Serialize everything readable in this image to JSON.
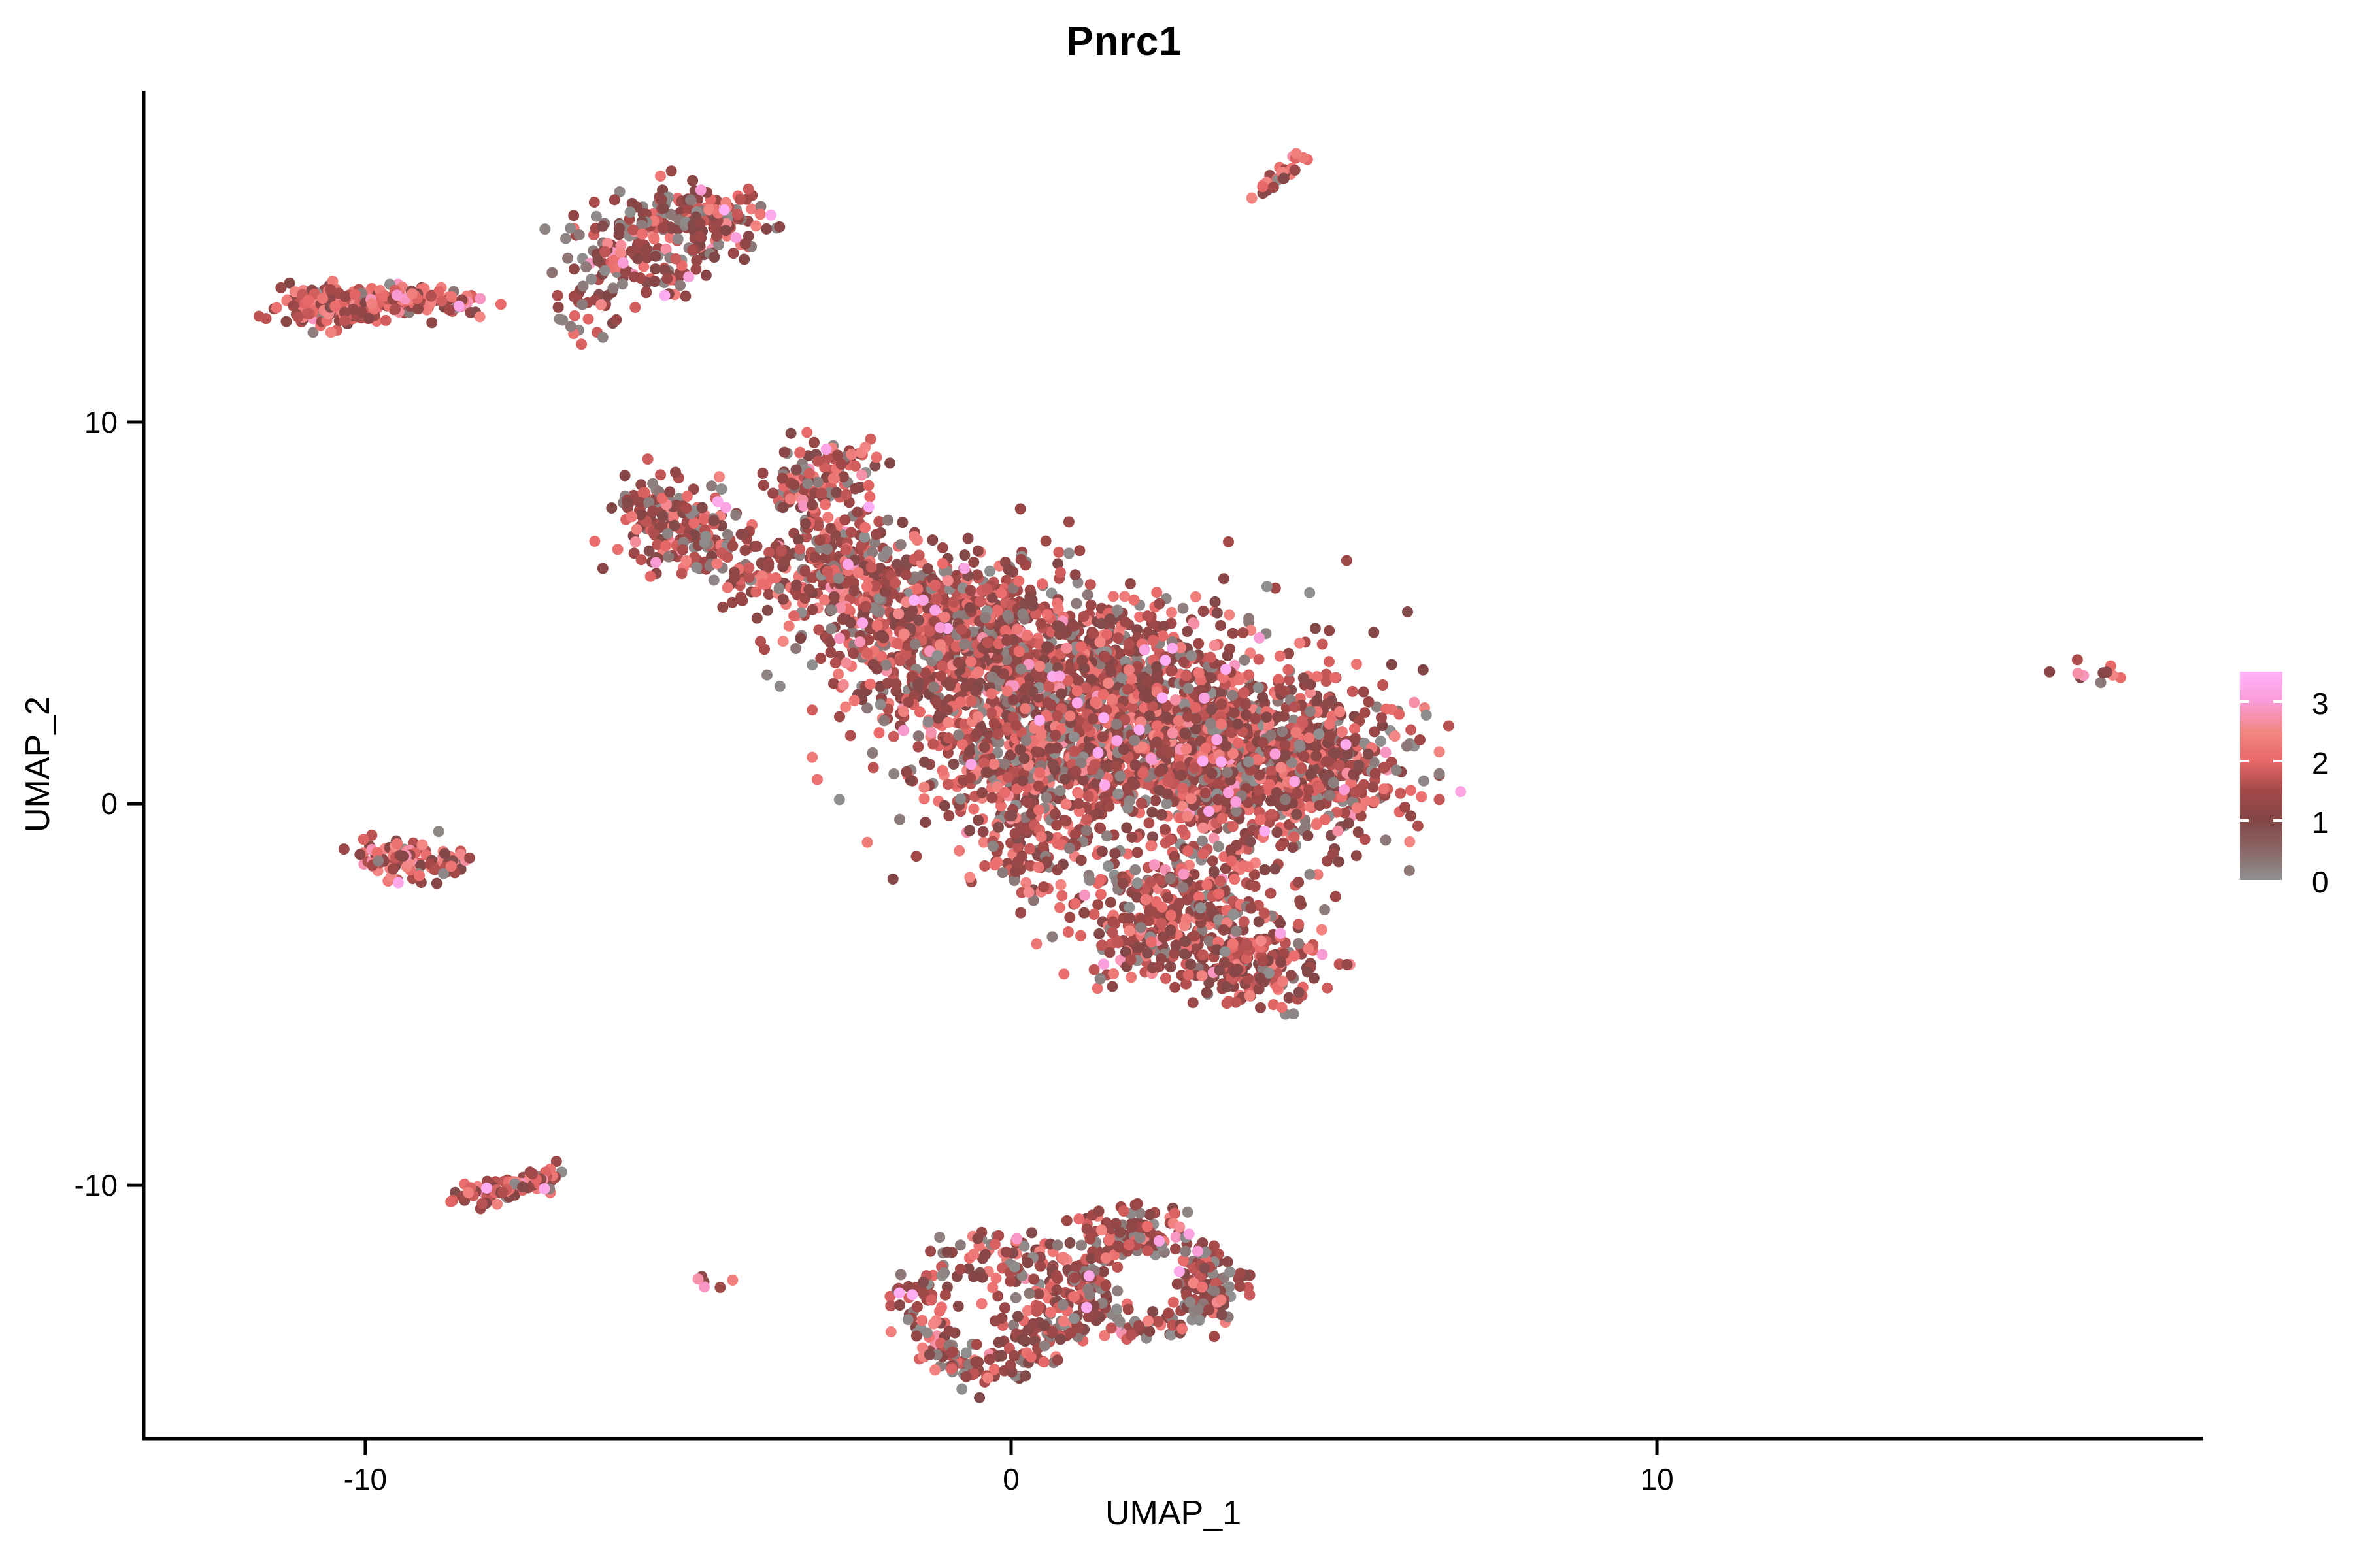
{
  "chart_data": {
    "type": "scatter",
    "title": "Pnrc1",
    "xlabel": "UMAP_1",
    "ylabel": "UMAP_2",
    "xlim": [
      -13.43,
      18.46
    ],
    "ylim": [
      -16.64,
      18.68
    ],
    "grid": false,
    "legend_position": "right",
    "point_radius_px": 8.5,
    "x_ticks": [
      {
        "value": -10,
        "label": "-10"
      },
      {
        "value": 0,
        "label": "0"
      },
      {
        "value": 10,
        "label": "10"
      }
    ],
    "y_ticks": [
      {
        "value": -10,
        "label": "-10"
      },
      {
        "value": 0,
        "label": "0"
      },
      {
        "value": 10,
        "label": "10"
      }
    ],
    "colorbar": {
      "min": 0,
      "max": 3.5,
      "tick_values": [
        3,
        2,
        1,
        0
      ],
      "tick_labels": [
        "3",
        "2",
        "1",
        "0"
      ],
      "gradient_stops": [
        {
          "value": 0.0,
          "color": "#909090"
        },
        {
          "value": 0.6,
          "color": "#8A6060"
        },
        {
          "value": 1.0,
          "color": "#824646"
        },
        {
          "value": 1.5,
          "color": "#A34848"
        },
        {
          "value": 2.0,
          "color": "#E86868"
        },
        {
          "value": 2.5,
          "color": "#F38784"
        },
        {
          "value": 3.0,
          "color": "#F99CD7"
        },
        {
          "value": 3.5,
          "color": "#FFB2FB"
        }
      ]
    },
    "expression_mixes": {
      "default": [
        [
          0.0,
          0.35,
          0.16
        ],
        [
          0.9,
          1.5,
          0.4
        ],
        [
          1.5,
          1.9,
          0.18
        ],
        [
          1.9,
          2.5,
          0.22
        ],
        [
          2.5,
          2.9,
          0.03
        ],
        [
          2.95,
          3.45,
          0.01
        ]
      ],
      "red": [
        [
          0.0,
          0.35,
          0.05
        ],
        [
          0.9,
          1.5,
          0.28
        ],
        [
          1.5,
          1.9,
          0.22
        ],
        [
          1.9,
          2.5,
          0.36
        ],
        [
          2.5,
          2.9,
          0.08
        ],
        [
          2.95,
          3.45,
          0.01
        ]
      ],
      "dark": [
        [
          0.0,
          0.35,
          0.2
        ],
        [
          0.9,
          1.5,
          0.45
        ],
        [
          1.5,
          1.9,
          0.15
        ],
        [
          1.9,
          2.5,
          0.16
        ],
        [
          2.5,
          2.9,
          0.03
        ],
        [
          2.95,
          3.45,
          0.01
        ]
      ]
    },
    "clusters": [
      {
        "id": "topleft-bar-a",
        "shape": "gauss",
        "cx": -10.4,
        "cy": 13.05,
        "sx": 0.55,
        "sy": 0.27,
        "rot": 0,
        "n": 190,
        "mix": "red"
      },
      {
        "id": "topleft-bar-b",
        "shape": "gauss",
        "cx": -9.2,
        "cy": 13.2,
        "sx": 0.5,
        "sy": 0.17,
        "rot": 0,
        "n": 80,
        "mix": "red"
      },
      {
        "id": "topleft-bar-c",
        "shape": "gauss",
        "cx": -8.35,
        "cy": 13.05,
        "sx": 0.18,
        "sy": 0.1,
        "rot": 0,
        "n": 6,
        "mix": "red"
      },
      {
        "id": "top-arc-a",
        "shape": "gauss",
        "cx": -4.95,
        "cy": 15.35,
        "sx": 0.6,
        "sy": 0.42,
        "rot": -20,
        "n": 160,
        "mix": "dark"
      },
      {
        "id": "top-arc-b",
        "shape": "gauss",
        "cx": -5.95,
        "cy": 14.4,
        "sx": 0.5,
        "sy": 0.55,
        "rot": 30,
        "n": 130,
        "mix": "dark"
      },
      {
        "id": "top-arc-tail",
        "shape": "gauss",
        "cx": -6.6,
        "cy": 12.9,
        "sx": 0.3,
        "sy": 0.35,
        "rot": 0,
        "n": 22,
        "mix": "dark"
      },
      {
        "id": "top-arc-sparse",
        "shape": "gauss",
        "cx": -5.6,
        "cy": 13.6,
        "sx": 0.45,
        "sy": 0.45,
        "rot": 0,
        "n": 20,
        "mix": "dark"
      },
      {
        "id": "top-streak",
        "shape": "line",
        "x1": 3.82,
        "y1": 16.0,
        "x2": 4.52,
        "y2": 16.95,
        "jitter": 0.07,
        "n": 30,
        "mix": "red"
      },
      {
        "id": "main-nw-blob",
        "shape": "gauss",
        "cx": -5.25,
        "cy": 7.6,
        "sx": 0.5,
        "sy": 0.6,
        "rot": 20,
        "n": 130,
        "mix": "default"
      },
      {
        "id": "main-nw-arm",
        "shape": "gauss",
        "cx": -4.4,
        "cy": 6.35,
        "sx": 0.85,
        "sy": 0.45,
        "rot": -25,
        "n": 130,
        "mix": "default"
      },
      {
        "id": "main-hook",
        "shape": "gauss",
        "cx": -3.0,
        "cy": 8.2,
        "sx": 0.38,
        "sy": 0.6,
        "rot": 15,
        "n": 110,
        "mix": "default"
      },
      {
        "id": "main-hook-top",
        "shape": "gauss",
        "cx": -2.55,
        "cy": 9.0,
        "sx": 0.3,
        "sy": 0.25,
        "rot": 0,
        "n": 30,
        "mix": "default"
      },
      {
        "id": "main-upper-left",
        "shape": "gauss",
        "cx": -2.55,
        "cy": 6.2,
        "sx": 0.6,
        "sy": 0.75,
        "rot": 0,
        "n": 170,
        "mix": "default"
      },
      {
        "id": "main-left",
        "shape": "gauss",
        "cx": -1.35,
        "cy": 4.9,
        "sx": 0.95,
        "sy": 0.95,
        "rot": 0,
        "n": 400,
        "mix": "default"
      },
      {
        "id": "main-center-left",
        "shape": "gauss",
        "cx": 0.3,
        "cy": 3.6,
        "sx": 1.3,
        "sy": 1.15,
        "rot": 0,
        "n": 780,
        "mix": "default"
      },
      {
        "id": "main-core",
        "shape": "gauss",
        "cx": 2.2,
        "cy": 1.9,
        "sx": 1.5,
        "sy": 1.25,
        "rot": -15,
        "n": 1150,
        "mix": "default"
      },
      {
        "id": "main-right",
        "shape": "gauss",
        "cx": 3.9,
        "cy": 0.7,
        "sx": 1.05,
        "sy": 1.0,
        "rot": 0,
        "n": 500,
        "mix": "default"
      },
      {
        "id": "main-right-bulge",
        "shape": "gauss",
        "cx": 4.9,
        "cy": 1.4,
        "sx": 0.55,
        "sy": 0.75,
        "rot": 0,
        "n": 140,
        "mix": "default"
      },
      {
        "id": "main-lower-left",
        "shape": "gauss",
        "cx": 0.1,
        "cy": 0.7,
        "sx": 0.8,
        "sy": 0.8,
        "rot": 0,
        "n": 230,
        "mix": "default"
      },
      {
        "id": "main-protrusion",
        "shape": "gauss",
        "cx": 0.4,
        "cy": -1.3,
        "sx": 0.4,
        "sy": 0.6,
        "rot": 0,
        "n": 80,
        "mix": "default"
      },
      {
        "id": "main-lower-lobe",
        "shape": "gauss",
        "cx": 2.6,
        "cy": -2.7,
        "sx": 0.9,
        "sy": 0.75,
        "rot": -10,
        "n": 310,
        "mix": "default"
      },
      {
        "id": "main-bottom-knob",
        "shape": "gauss",
        "cx": 3.75,
        "cy": -4.3,
        "sx": 0.6,
        "sy": 0.55,
        "rot": 0,
        "n": 180,
        "mix": "default"
      },
      {
        "id": "main-lower-sparse",
        "shape": "gauss",
        "cx": 1.8,
        "cy": -3.8,
        "sx": 0.5,
        "sy": 0.4,
        "rot": 0,
        "n": 50,
        "mix": "default"
      },
      {
        "id": "main-halo",
        "shape": "gauss",
        "cx": 1.3,
        "cy": 2.3,
        "sx": 2.3,
        "sy": 1.9,
        "rot": -15,
        "n": 260,
        "mix": "default"
      },
      {
        "id": "leftmid-a",
        "shape": "gauss",
        "cx": -9.55,
        "cy": -1.35,
        "sx": 0.3,
        "sy": 0.3,
        "rot": 0,
        "n": 60,
        "mix": "red"
      },
      {
        "id": "leftmid-b",
        "shape": "gauss",
        "cx": -8.95,
        "cy": -1.65,
        "sx": 0.3,
        "sy": 0.22,
        "rot": 0,
        "n": 45,
        "mix": "red"
      },
      {
        "id": "bottomleft-bar",
        "shape": "line",
        "x1": -8.5,
        "y1": -10.35,
        "x2": -7.0,
        "y2": -9.7,
        "jitter": 0.16,
        "n": 100,
        "mix": "red"
      },
      {
        "id": "tiny-pair",
        "shape": "gauss",
        "cx": -4.65,
        "cy": -12.5,
        "sx": 0.13,
        "sy": 0.1,
        "rot": 0,
        "n": 6,
        "mix": "red"
      },
      {
        "id": "bottom-ring-left",
        "shape": "ring",
        "cx": -0.35,
        "cy": -13.25,
        "rx": 1.1,
        "ry": 1.6,
        "thick": 0.22,
        "n": 270,
        "mix": "dark"
      },
      {
        "id": "bottom-ring-right",
        "shape": "ring",
        "cx": 2.05,
        "cy": -12.6,
        "rx": 1.0,
        "ry": 1.15,
        "thick": 0.22,
        "n": 240,
        "mix": "dark"
      },
      {
        "id": "bottom-arm",
        "shape": "gauss",
        "cx": 1.85,
        "cy": -11.1,
        "sx": 0.5,
        "sy": 0.28,
        "rot": 10,
        "n": 60,
        "mix": "dark"
      },
      {
        "id": "bottom-interior",
        "shape": "gauss",
        "cx": -0.3,
        "cy": -13.3,
        "sx": 0.55,
        "sy": 0.8,
        "rot": 0,
        "n": 20,
        "mix": "dark"
      },
      {
        "id": "bottom-right-edge",
        "shape": "gauss",
        "cx": 3.1,
        "cy": -12.9,
        "sx": 0.3,
        "sy": 0.45,
        "rot": 0,
        "n": 40,
        "mix": "dark"
      },
      {
        "id": "far-right-dots",
        "shape": "gauss",
        "cx": 16.65,
        "cy": 3.5,
        "sx": 0.3,
        "sy": 0.17,
        "rot": -15,
        "n": 11,
        "mix": "red"
      }
    ]
  }
}
